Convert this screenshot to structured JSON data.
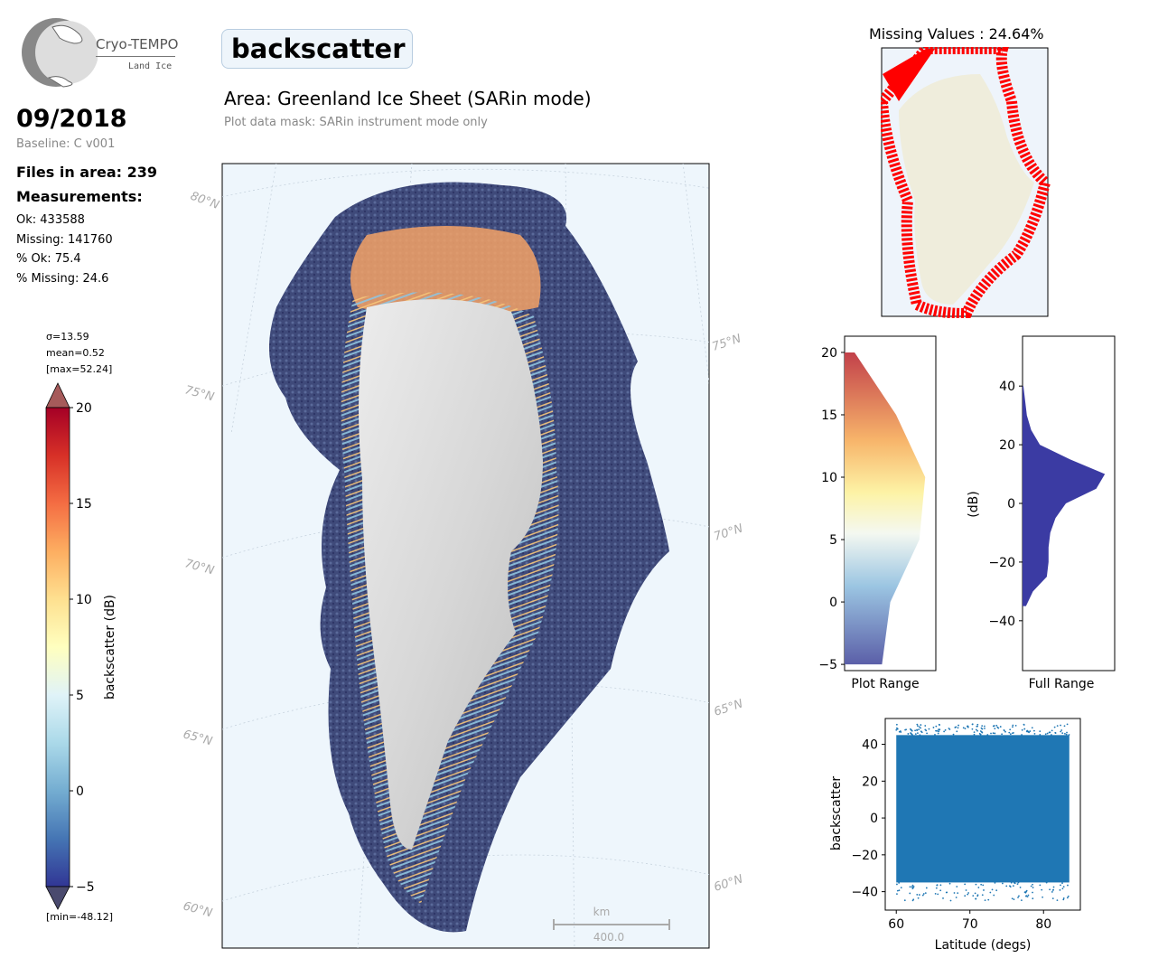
{
  "logo": {
    "line1": "Cryo-TEMPO",
    "line2": "Land Ice"
  },
  "header": {
    "date": "09/2018",
    "baseline": "Baseline: C v001",
    "files": "Files in area: 239",
    "measurements": "Measurements:",
    "ok": "Ok: 433588",
    "missing": "Missing: 141760",
    "pct_ok": "% Ok: 75.4",
    "pct_missing": "% Missing: 24.6"
  },
  "title": {
    "parameter": "backscatter",
    "area": "Area: Greenland Ice Sheet (SARin mode)",
    "mask": "Plot data mask: SARin instrument mode only"
  },
  "map": {
    "lat_labels_left": [
      "80°N",
      "75°N",
      "70°N",
      "65°N",
      "60°N"
    ],
    "lat_labels_right": [
      "75°N",
      "70°N",
      "65°N",
      "60°N"
    ],
    "scale_unit": "km",
    "scale_value": "400.0"
  },
  "chart_data": [
    {
      "type": "colorbar",
      "label": "backscatter (dB)",
      "ticks": [
        20,
        15,
        10,
        5,
        0,
        -5
      ],
      "range": [
        -5,
        20
      ],
      "extend": "both",
      "stats": {
        "sigma": "σ=13.59",
        "mean": "mean=0.52",
        "max": "[max=52.24]",
        "min": "[min=-48.12]"
      }
    },
    {
      "type": "map-inset",
      "title": "Missing Values : 24.64%"
    },
    {
      "type": "histogram",
      "xlabel": "Plot Range",
      "ylabel": "",
      "ylim": [
        -5.5,
        21.3
      ],
      "ticks": [
        20,
        15,
        10,
        5,
        0,
        -5
      ],
      "bins_y": [
        -5,
        0,
        5,
        10,
        15,
        20
      ],
      "relative_counts": [
        0.45,
        0.55,
        0.9,
        0.97,
        0.62,
        0.12
      ]
    },
    {
      "type": "histogram",
      "xlabel": "Full Range",
      "ylabel": "(dB)",
      "ylim": [
        -57,
        57
      ],
      "ticks": [
        40,
        20,
        0,
        -20,
        -40
      ],
      "bins_y": [
        -35,
        -30,
        -25,
        -20,
        -15,
        -10,
        -5,
        0,
        5,
        10,
        15,
        20,
        25,
        30,
        35,
        40
      ],
      "relative_counts": [
        0.04,
        0.12,
        0.28,
        0.3,
        0.3,
        0.32,
        0.38,
        0.5,
        0.85,
        0.95,
        0.55,
        0.2,
        0.1,
        0.05,
        0.03,
        0.01
      ],
      "color": "#3b3ba3"
    },
    {
      "type": "scatter",
      "xlabel": "Latitude (degs)",
      "ylabel": "backscatter",
      "xlim": [
        58.5,
        85
      ],
      "ylim": [
        -50,
        54
      ],
      "xticks": [
        60,
        70,
        80
      ],
      "yticks": [
        40,
        20,
        0,
        -20,
        -40
      ],
      "x_range": [
        60,
        83.5
      ],
      "y_band": [
        -35,
        45
      ],
      "color": "#1f77b4"
    }
  ]
}
